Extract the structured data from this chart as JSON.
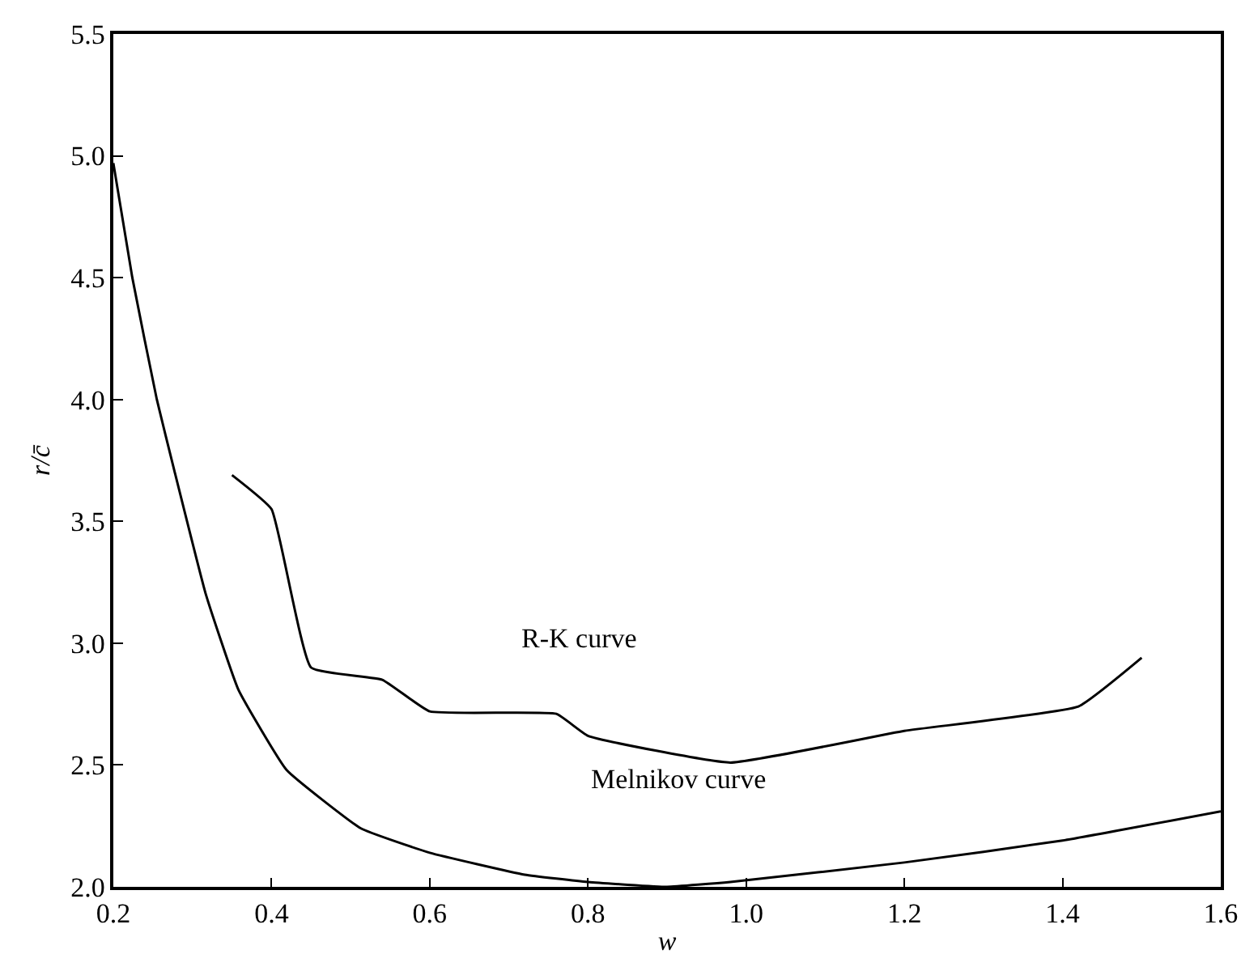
{
  "chart_data": {
    "type": "line",
    "xlabel": "w",
    "ylabel": "r/c̄",
    "series": [
      {
        "color": "#000000",
        "x": [
          0.35,
          0.4,
          0.45,
          0.54,
          0.6,
          0.76,
          0.8,
          0.98,
          1.2,
          1.42,
          1.5
        ],
        "values": [
          3.69,
          3.55,
          2.9,
          2.85,
          2.72,
          2.71,
          2.62,
          2.51,
          2.64,
          2.74,
          2.94
        ]
      },
      {
        "color": "#000000",
        "x": [
          0.2,
          0.224,
          0.255,
          0.277,
          0.317,
          0.358,
          0.419,
          0.513,
          0.6,
          0.72,
          0.8,
          0.9,
          0.98,
          1.2,
          1.4,
          1.6
        ],
        "values": [
          4.97,
          4.5,
          4.0,
          3.71,
          3.2,
          2.81,
          2.48,
          2.24,
          2.14,
          2.05,
          2.02,
          2.0,
          2.02,
          2.1,
          2.19,
          2.31
        ]
      }
    ],
    "annotations": [
      "R-K curve",
      "Melnikov curve"
    ],
    "xlim": [
      0.2,
      1.6
    ],
    "xticks": [
      {
        "value": 0.2,
        "label": "0.2"
      },
      {
        "value": 0.4,
        "label": "0.4"
      },
      {
        "value": 0.6,
        "label": "0.6"
      },
      {
        "value": 0.8,
        "label": "0.8"
      },
      {
        "value": 1.0,
        "label": "1.0"
      },
      {
        "value": 1.2,
        "label": "1.2"
      },
      {
        "value": 1.4,
        "label": "1.4"
      },
      {
        "value": 1.6,
        "label": "1.6"
      }
    ],
    "ylim": [
      2.0,
      5.5
    ],
    "yticks": [
      {
        "value": 2.0,
        "label": "2.0"
      },
      {
        "value": 2.5,
        "label": "2.5"
      },
      {
        "value": 3.0,
        "label": "3.0"
      },
      {
        "value": 3.5,
        "label": "3.5"
      },
      {
        "value": 4.0,
        "label": "4.0"
      },
      {
        "value": 4.5,
        "label": "4.5"
      },
      {
        "value": 5.0,
        "label": "5.0"
      },
      {
        "value": 5.5,
        "label": "5.5"
      }
    ],
    "marker": "none",
    "line_style": "solid"
  }
}
